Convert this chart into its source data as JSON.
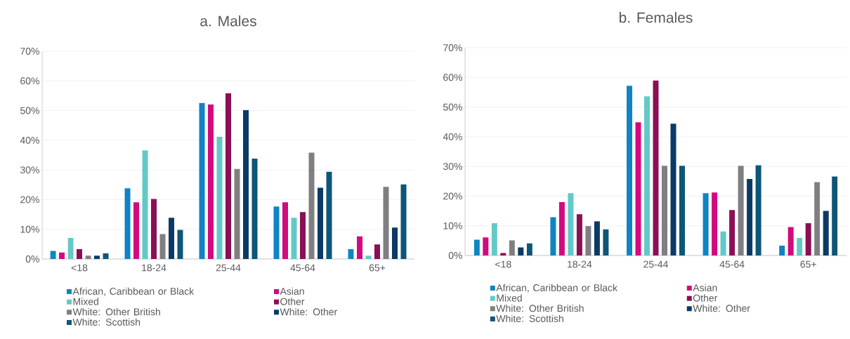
{
  "chart_data": [
    {
      "type": "bar",
      "title": "a. Males",
      "categories": [
        "<18",
        "18-24",
        "25-44",
        "45-64",
        "65+"
      ],
      "series": [
        {
          "name": "African, Caribbean or Black",
          "color": "#0e84c4",
          "values": [
            2.7,
            23.8,
            52.6,
            17.7,
            3.3
          ]
        },
        {
          "name": "Asian",
          "color": "#d3097e",
          "values": [
            2.2,
            19.1,
            52.1,
            19.1,
            7.6
          ]
        },
        {
          "name": "Mixed",
          "color": "#63c9c7",
          "values": [
            7.1,
            36.6,
            41.2,
            13.9,
            1.1
          ]
        },
        {
          "name": "Other",
          "color": "#8a0f55",
          "values": [
            3.3,
            20.2,
            55.9,
            15.8,
            4.9
          ]
        },
        {
          "name": "White: Other British",
          "color": "#7f7f81",
          "values": [
            1.1,
            8.4,
            30.3,
            35.8,
            24.3
          ]
        },
        {
          "name": "White: Other",
          "color": "#0b3a66",
          "values": [
            1.1,
            13.9,
            50.2,
            24.0,
            10.6
          ]
        },
        {
          "name": "White: Scottish",
          "color": "#0d5678",
          "values": [
            1.9,
            9.8,
            33.8,
            29.4,
            25.1
          ]
        }
      ],
      "ylim": [
        0,
        70
      ],
      "yticks": [
        {
          "value": 0,
          "label": "0%"
        },
        {
          "value": 10,
          "label": "10%"
        },
        {
          "value": 20,
          "label": "20%"
        },
        {
          "value": 30,
          "label": "30%"
        },
        {
          "value": 40,
          "label": "40%"
        },
        {
          "value": 50,
          "label": "50%"
        },
        {
          "value": 60,
          "label": "60%"
        },
        {
          "value": 70,
          "label": "70%"
        }
      ],
      "grid": "y",
      "legend": "bottom"
    },
    {
      "type": "bar",
      "title": "b. Females",
      "categories": [
        "<18",
        "18-24",
        "25-44",
        "45-64",
        "65+"
      ],
      "series": [
        {
          "name": "African, Caribbean or Black",
          "color": "#0e84c4",
          "values": [
            5.3,
            12.9,
            57.2,
            21.0,
            3.3
          ]
        },
        {
          "name": "Asian",
          "color": "#d3097e",
          "values": [
            6.1,
            18.0,
            44.9,
            21.2,
            9.6
          ]
        },
        {
          "name": "Mixed",
          "color": "#63c9c7",
          "values": [
            10.9,
            21.0,
            53.6,
            8.1,
            5.9
          ]
        },
        {
          "name": "Other",
          "color": "#8a0f55",
          "values": [
            0.8,
            13.9,
            59.0,
            15.3,
            10.9
          ]
        },
        {
          "name": "White: Other British",
          "color": "#7f7f81",
          "values": [
            5.1,
            9.9,
            30.2,
            30.2,
            24.7
          ]
        },
        {
          "name": "White: Other",
          "color": "#0b3a66",
          "values": [
            2.7,
            11.5,
            44.4,
            25.8,
            15.0
          ]
        },
        {
          "name": "White: Scottish",
          "color": "#0d5678",
          "values": [
            4.1,
            8.8,
            30.2,
            30.4,
            26.6
          ]
        }
      ],
      "ylim": [
        0,
        70
      ],
      "yticks": [
        {
          "value": 0,
          "label": "0%"
        },
        {
          "value": 10,
          "label": "10%"
        },
        {
          "value": 20,
          "label": "20%"
        },
        {
          "value": 30,
          "label": "30%"
        },
        {
          "value": 40,
          "label": "40%"
        },
        {
          "value": 50,
          "label": "50%"
        },
        {
          "value": 60,
          "label": "60%"
        },
        {
          "value": 70,
          "label": "70%"
        }
      ],
      "grid": "y",
      "legend": "bottom"
    }
  ]
}
